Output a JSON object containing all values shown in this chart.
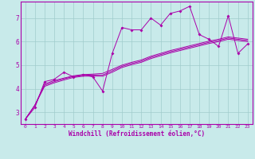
{
  "bg_color": "#c8eaea",
  "grid_color": "#a0cccc",
  "line_color": "#aa00aa",
  "xlabel": "Windchill (Refroidissement éolien,°C)",
  "xlim": [
    -0.5,
    23.5
  ],
  "ylim": [
    2.5,
    7.7
  ],
  "yticks": [
    3,
    4,
    5,
    6,
    7
  ],
  "xticks": [
    0,
    1,
    2,
    3,
    4,
    5,
    6,
    7,
    8,
    9,
    10,
    11,
    12,
    13,
    14,
    15,
    16,
    17,
    18,
    19,
    20,
    21,
    22,
    23
  ],
  "series": [
    [
      2.7,
      3.2,
      4.3,
      4.4,
      4.7,
      4.5,
      4.6,
      4.5,
      3.9,
      5.5,
      6.6,
      6.5,
      6.5,
      7.0,
      6.7,
      7.2,
      7.3,
      7.5,
      6.3,
      6.1,
      5.8,
      7.1,
      5.5,
      5.9
    ],
    [
      2.7,
      3.3,
      4.2,
      4.35,
      4.45,
      4.55,
      4.6,
      4.62,
      4.65,
      4.82,
      5.0,
      5.12,
      5.22,
      5.38,
      5.5,
      5.62,
      5.72,
      5.82,
      5.92,
      6.02,
      6.1,
      6.2,
      6.15,
      6.1
    ],
    [
      2.7,
      3.3,
      4.15,
      4.3,
      4.42,
      4.52,
      4.57,
      4.58,
      4.58,
      4.76,
      4.95,
      5.07,
      5.17,
      5.33,
      5.45,
      5.57,
      5.67,
      5.77,
      5.87,
      5.97,
      6.05,
      6.15,
      6.1,
      6.05
    ],
    [
      2.7,
      3.3,
      4.1,
      4.25,
      4.37,
      4.48,
      4.53,
      4.54,
      4.53,
      4.7,
      4.9,
      5.02,
      5.12,
      5.28,
      5.4,
      5.52,
      5.62,
      5.72,
      5.82,
      5.92,
      6.0,
      6.1,
      6.05,
      6.0
    ]
  ]
}
